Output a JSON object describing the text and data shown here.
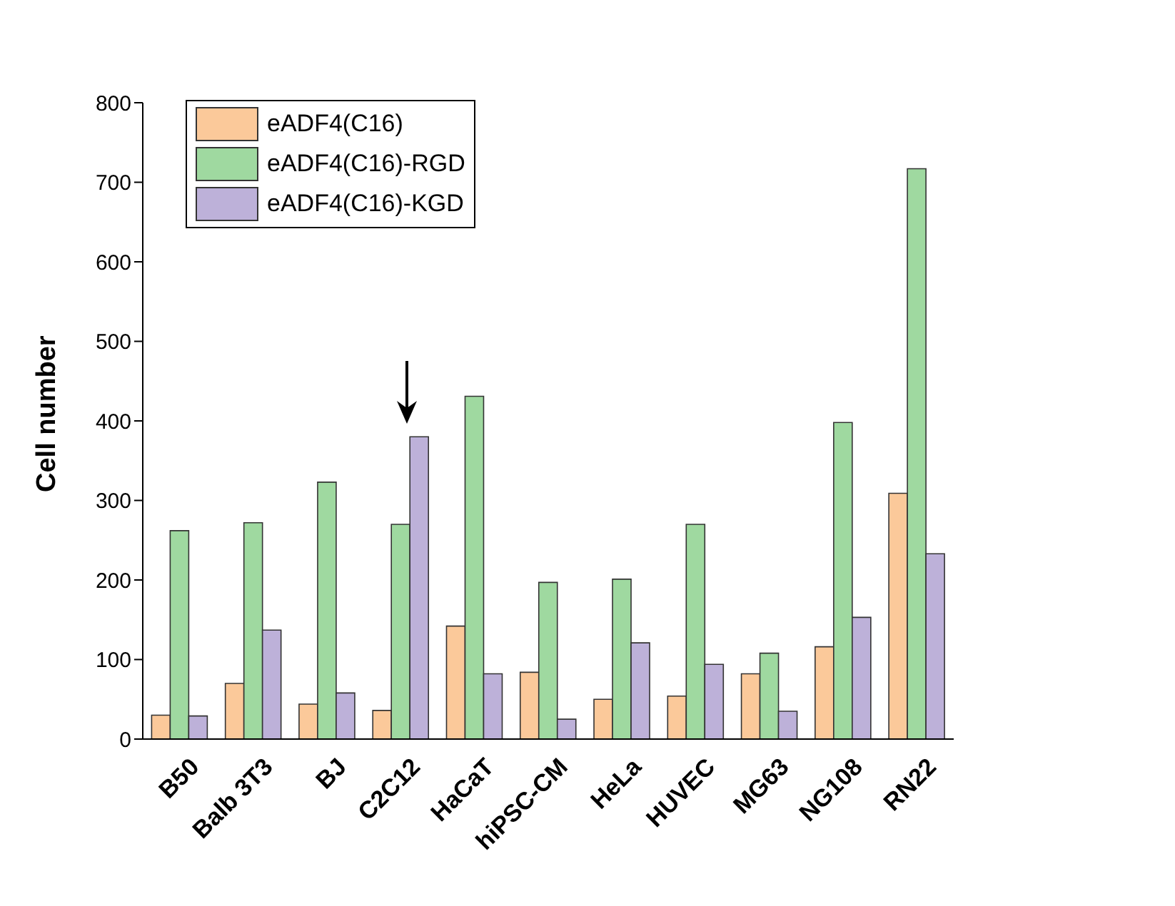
{
  "chart_data": {
    "type": "bar",
    "ylabel": "Cell number",
    "categories": [
      "B50",
      "Balb 3T3",
      "BJ",
      "C2C12",
      "HaCaT",
      "hiPSC-CM",
      "HeLa",
      "HUVEC",
      "MG63",
      "NG108",
      "RN22"
    ],
    "series": [
      {
        "name": "eADF4(C16)",
        "color": "#fbc99a",
        "values": [
          30,
          70,
          44,
          36,
          142,
          84,
          50,
          54,
          82,
          116,
          309
        ]
      },
      {
        "name": "eADF4(C16)-RGD",
        "color": "#9fd9a0",
        "values": [
          262,
          272,
          323,
          270,
          431,
          197,
          201,
          270,
          108,
          398,
          717
        ]
      },
      {
        "name": "eADF4(C16)-KGD",
        "color": "#bdb1d9",
        "values": [
          29,
          137,
          58,
          380,
          82,
          25,
          121,
          94,
          35,
          153,
          233
        ]
      }
    ],
    "ylim": [
      0,
      800
    ],
    "yticks": [
      0,
      100,
      200,
      300,
      400,
      500,
      600,
      700,
      800
    ],
    "grid": false,
    "legend": "top left"
  }
}
